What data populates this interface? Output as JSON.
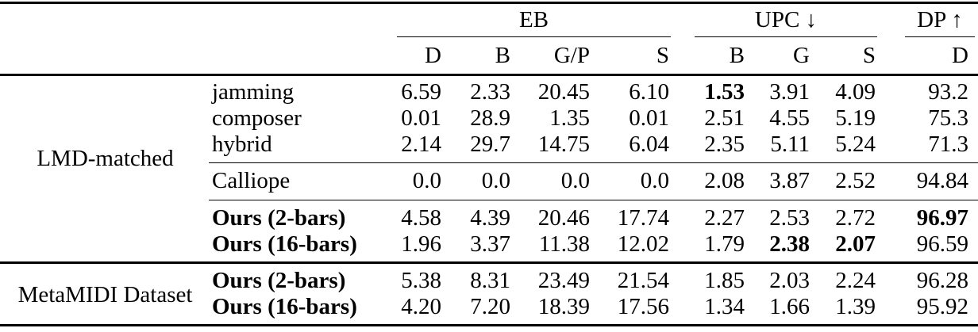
{
  "table": {
    "col_groups": [
      {
        "label": "EB"
      },
      {
        "label": "UPC ↓"
      },
      {
        "label": "DP ↑"
      }
    ],
    "sub_headers": [
      "D",
      "B",
      "G/P",
      "S",
      "B",
      "G",
      "S",
      "D"
    ],
    "sections": [
      {
        "dataset": "LMD-matched",
        "groups": [
          {
            "rows": [
              {
                "model": "jamming",
                "values": [
                  "6.59",
                  "2.33",
                  "20.45",
                  "6.10",
                  "1.53",
                  "3.91",
                  "4.09",
                  "93.2"
                ]
              },
              {
                "model": "composer",
                "values": [
                  "0.01",
                  "28.9",
                  "1.35",
                  "0.01",
                  "2.51",
                  "4.55",
                  "5.19",
                  "75.3"
                ]
              },
              {
                "model": "hybrid",
                "values": [
                  "2.14",
                  "29.7",
                  "14.75",
                  "6.04",
                  "2.35",
                  "5.11",
                  "5.24",
                  "71.3"
                ]
              }
            ]
          },
          {
            "rows": [
              {
                "model": "Calliope",
                "values": [
                  "0.0",
                  "0.0",
                  "0.0",
                  "0.0",
                  "2.08",
                  "3.87",
                  "2.52",
                  "94.84"
                ]
              }
            ]
          },
          {
            "rows": [
              {
                "model": "Ours (2-bars)",
                "values": [
                  "4.58",
                  "4.39",
                  "20.46",
                  "17.74",
                  "2.27",
                  "2.53",
                  "2.72",
                  "96.97"
                ]
              },
              {
                "model": "Ours (16-bars)",
                "values": [
                  "1.96",
                  "3.37",
                  "11.38",
                  "12.02",
                  "1.79",
                  "2.38",
                  "2.07",
                  "96.59"
                ]
              }
            ]
          }
        ]
      },
      {
        "dataset": "MetaMIDI Dataset",
        "groups": [
          {
            "rows": [
              {
                "model": "Ours (2-bars)",
                "values": [
                  "5.38",
                  "8.31",
                  "23.49",
                  "21.54",
                  "1.85",
                  "2.03",
                  "2.24",
                  "96.28"
                ]
              },
              {
                "model": "Ours (16-bars)",
                "values": [
                  "4.20",
                  "7.20",
                  "18.39",
                  "17.56",
                  "1.34",
                  "1.66",
                  "1.39",
                  "95.92"
                ]
              }
            ]
          }
        ]
      }
    ]
  }
}
